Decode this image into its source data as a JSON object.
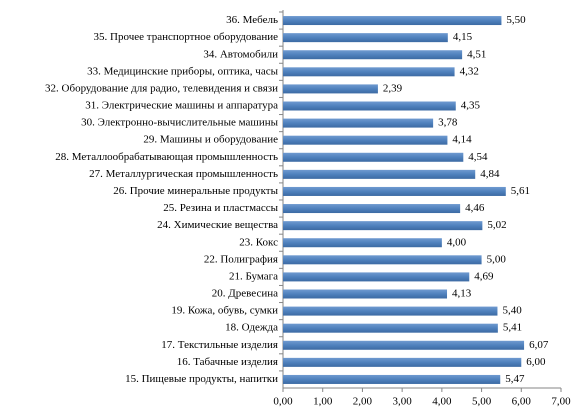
{
  "chart_data": {
    "type": "hbar",
    "color": "#4f81bd",
    "categories": [
      "36. Мебель",
      "35. Прочее транспортное оборудование",
      "34. Автомобили",
      "33. Медицинские приборы, оптика, часы",
      "32. Оборудование для радио, телевидения и связи",
      "31. Электрические машины и аппаратура",
      "30. Электронно-вычислительные машины",
      "29. Машины и оборудование",
      "28. Металлообрабатывающая промышленность",
      "27. Металлургическая  промышленность",
      "26. Прочие минеральные продукты",
      "25. Резина и пластмассы",
      "24. Химические вещества",
      "23. Кокс",
      "22. Полиграфия",
      "21. Бумага",
      "20. Древесина",
      "19. Кожа, обувь, сумки",
      "18. Одежда",
      "17. Текстильные изделия",
      "16. Табачные изделия",
      "15. Пищевые продукты, напитки"
    ],
    "values": [
      5.5,
      4.15,
      4.51,
      4.32,
      2.39,
      4.35,
      3.78,
      4.14,
      4.54,
      4.84,
      5.61,
      4.46,
      5.02,
      4.0,
      5.0,
      4.69,
      4.13,
      5.4,
      5.41,
      6.07,
      6.0,
      5.47
    ],
    "value_labels": [
      "5,50",
      "4,15",
      "4,51",
      "4,32",
      "2,39",
      "4,35",
      "3,78",
      "4,14",
      "4,54",
      "4,84",
      "5,61",
      "4,46",
      "5,02",
      "4,00",
      "5,00",
      "4,69",
      "4,13",
      "5,40",
      "5,41",
      "6,07",
      "6,00",
      "5,47"
    ],
    "xlim": [
      0,
      7
    ],
    "xticks": [
      {
        "value": 0,
        "label": "0,00"
      },
      {
        "value": 1,
        "label": "1,00"
      },
      {
        "value": 2,
        "label": "2,00"
      },
      {
        "value": 3,
        "label": "3,00"
      },
      {
        "value": 4,
        "label": "4,00"
      },
      {
        "value": 5,
        "label": "5,00"
      },
      {
        "value": 6,
        "label": "6,00"
      },
      {
        "value": 7,
        "label": "7,00"
      }
    ]
  }
}
